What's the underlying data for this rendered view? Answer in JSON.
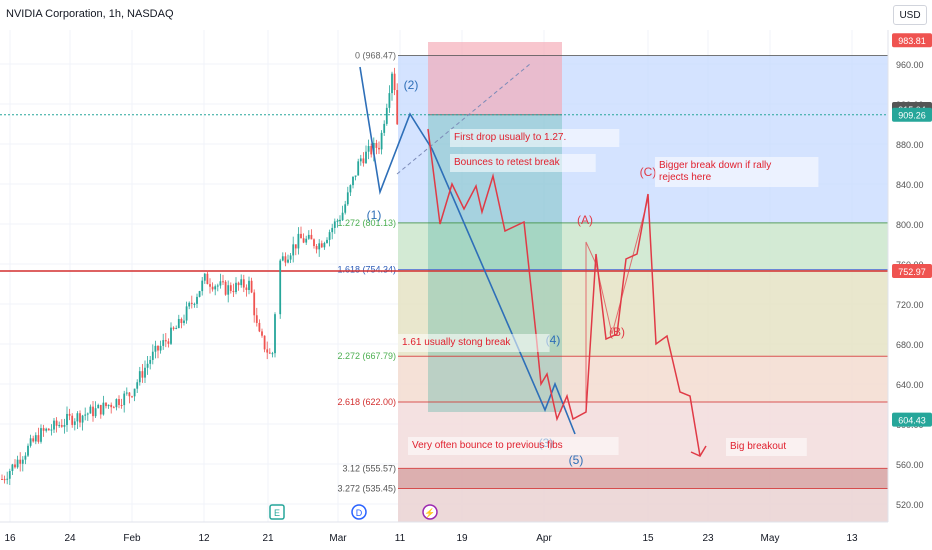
{
  "header": {
    "title": "NVIDIA Corporation, 1h, NASDAQ",
    "currency": "USD"
  },
  "colors": {
    "bull": "#26a69a",
    "bear": "#ef5350",
    "wave_blue": "#2e6fb8",
    "wave_red": "#e03a46",
    "support": "#d32f2f"
  },
  "chart_data": {
    "type": "candlestick",
    "symbol": "NVDA",
    "interval": "1h",
    "ylim": [
      500,
      990
    ],
    "y_ticks": [
      520,
      560,
      600,
      640,
      680,
      720,
      760,
      800,
      840,
      880,
      920,
      960
    ],
    "x_ticks": [
      "16",
      "24",
      "Feb",
      "12",
      "21",
      "Mar",
      "11",
      "19",
      "Apr",
      "15",
      "23",
      "May",
      "13"
    ],
    "price_tags": [
      {
        "label": "983.81",
        "value": 983.81,
        "color": "#ef5350"
      },
      {
        "label": "915.04",
        "value": 915.04,
        "color": "#555555"
      },
      {
        "label": "909.26",
        "value": 909.26,
        "color": "#26a69a"
      },
      {
        "label": "752.97",
        "value": 752.97,
        "color": "#ef5350"
      },
      {
        "label": "604.43",
        "value": 604.43,
        "color": "#26a69a"
      }
    ],
    "fib_levels": [
      {
        "label": "0 (968.47)",
        "value": 968.47
      },
      {
        "label": "1.272 (801.13)",
        "value": 801.13
      },
      {
        "label": "1.618 (754.34)",
        "value": 754.34
      },
      {
        "label": "2.272 (667.79)",
        "value": 667.79
      },
      {
        "label": "2.618 (622.00)",
        "value": 622.0
      },
      {
        "label": "3.12 (555.57)",
        "value": 555.57
      },
      {
        "label": "3.272 (535.45)",
        "value": 535.45
      }
    ],
    "wave_labels_blue": [
      "(1)",
      "(2)",
      "(3)",
      "(4)",
      "(5)"
    ],
    "wave_labels_red": [
      "(A)",
      "(B)",
      "(C)"
    ],
    "annotations": [
      "First drop usually to 1.27.",
      "Bounces to retest break",
      "Bigger break down if rally rejects here",
      "1.61 usually stong break",
      "Very often bounce to previous fibs",
      "Big breakout"
    ],
    "event_markers": [
      "E",
      "D",
      "⚡"
    ]
  }
}
